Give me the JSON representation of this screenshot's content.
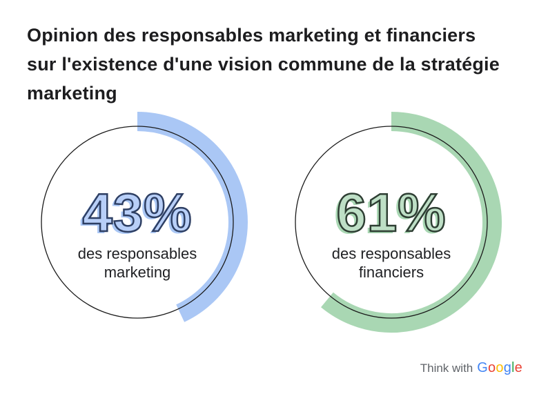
{
  "title": {
    "lines": [
      "Opinion des responsables marketing et financiers",
      "sur l'existence d'une vision commune de la stratégie",
      "marketing"
    ]
  },
  "chart_data": {
    "type": "donut",
    "description": "Two partial-ring donut gauges, arcs start at 12 o'clock and sweep clockwise",
    "outline_color": "#1a1a1a",
    "max": 100,
    "charts": [
      {
        "value": 43,
        "value_label": "43%",
        "label": "des responsables marketing",
        "arc_color": "#aac7f5",
        "number_fill": "#b8cff8",
        "number_outline": "#2e3f63"
      },
      {
        "value": 61,
        "value_label": "61%",
        "label": "des responsables financiers",
        "arc_color": "#a9d7b3",
        "number_fill": "#bedfc6",
        "number_outline": "#2e3e33"
      }
    ]
  },
  "footer": {
    "think_with": "Think with",
    "google_letters": [
      {
        "ch": "G",
        "style": "color:#4285F4"
      },
      {
        "ch": "o",
        "style": "color:#EA4335"
      },
      {
        "ch": "o",
        "style": "color:#FBBC04"
      },
      {
        "ch": "g",
        "style": "color:#4285F4"
      },
      {
        "ch": "l",
        "style": "color:#34A853"
      },
      {
        "ch": "e",
        "style": "color:#EA4335"
      }
    ]
  }
}
